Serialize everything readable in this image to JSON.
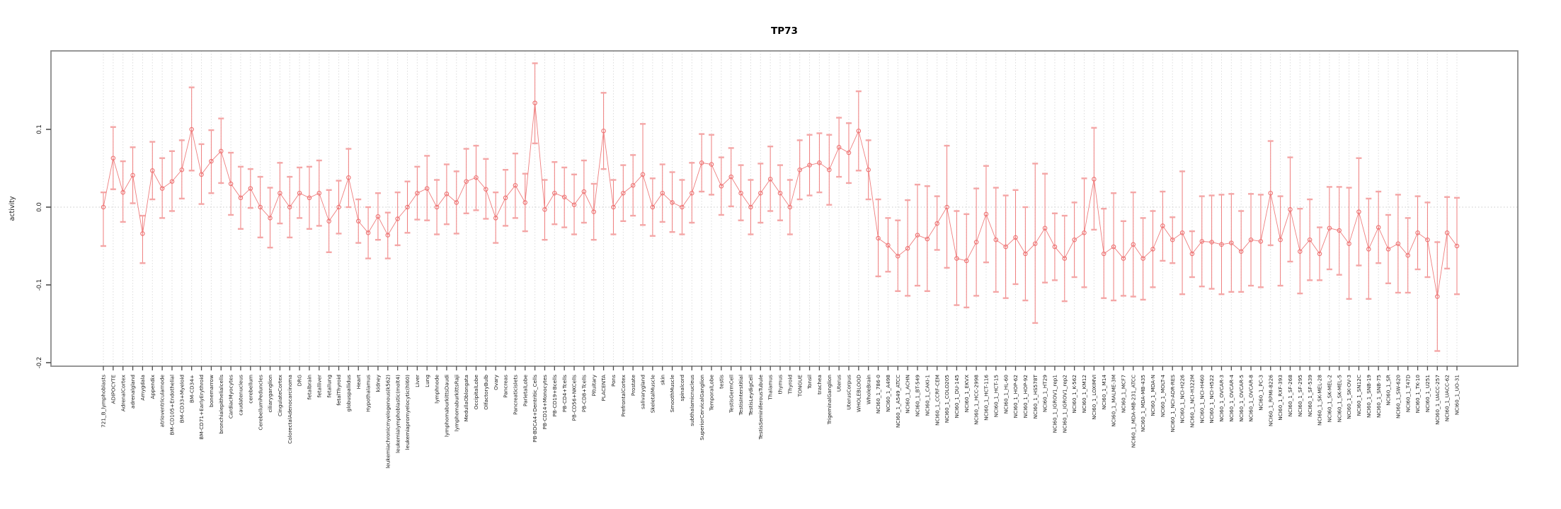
{
  "chart_data": {
    "type": "line",
    "title": "TP73",
    "xlabel": "",
    "ylabel": "activity",
    "ylim": [
      -0.205,
      0.201
    ],
    "yticks": [
      0.1,
      0.0,
      -0.1,
      -0.2
    ],
    "ytick_labels": [
      "0.1",
      "0.0",
      "-0.1",
      "-0.2"
    ],
    "legend": "none",
    "grid": "vertical dotted gridline per category; dotted horizontal line at 0",
    "marker": "open-circle with asymmetric error bars and flat caps, points connected by thin line",
    "categories": [
      "721_B_lymphoblasts",
      "ADIPOCYTE",
      "AdrenalCortex",
      "adrenalgland",
      "Amygdala",
      "Appendix",
      "atrioventricularnode",
      "BM-CD105+Endothelial",
      "BM-CD33+Myeloid",
      "BM-CD34+",
      "BM-CD71+EarlyErythroid",
      "bonemarrow",
      "bronchialepithelialcells",
      "CardiacMyocytes",
      "caudatenucleus",
      "cerebellum",
      "CerebellumPeduncles",
      "ciliaryganglion",
      "CingulateCortex",
      "ColorectalAdenocarcinoma",
      "DRG",
      "fetalbrain",
      "fetalliver",
      "fetallung",
      "fetalThyroid",
      "globuspallidus",
      "Heart",
      "Hypothalamus",
      "kidney",
      "leukemiachronicmyelogenous(k562)",
      "leukemialymphoblastic(molt4)",
      "leukemiapromyelocytic(hl60)",
      "Liver",
      "Lung",
      "lymphnode",
      "lymphomaburkittsDaudi",
      "lymphomaburkittsRaji",
      "MedullaOblongata",
      "OccipitalLobe",
      "OlfactoryBulb",
      "Ovary",
      "Pancreas",
      "Pancreaticislets",
      "ParietalLobe",
      "PB-BDCA4+Dentritic_Cells",
      "PB-CD14+Monocytes",
      "PB-CD19+Bcells",
      "PB-CD4+Tcells",
      "PB-CD56+NKCells",
      "PB-CD8+Tcells",
      "Pituitary",
      "PLACENTA",
      "Pons",
      "PrefrontalCortex",
      "Prostate",
      "salivarygland",
      "SkeletalMuscle",
      "skin",
      "SmoothMuscle",
      "spinalcord",
      "subthalamicnucleus",
      "SuperiorCervicalGanglion",
      "TemporalLobe",
      "testis",
      "TestisGermCell",
      "TestisInterstitial",
      "TestisLeydigCell",
      "TestisSeminiferousTubule",
      "Thalamus",
      "thymus",
      "Thyroid",
      "TONGUE",
      "Tonsil",
      "trachea",
      "TrigeminalGanglion",
      "Uterus",
      "UterusCorpus",
      "WHOLEBLOOD",
      "WholeBrain",
      "NCI60_1_786-0",
      "NCI60_1_A498",
      "NCI60_1_A549_ATCC",
      "NCI60_1_ACHN",
      "NCI60_1_BT-549",
      "NCI60_1_CAKI-1",
      "NCI60_1_CCRF-CEM",
      "NCI60_1_COLO205",
      "NCI60_1_DU-145",
      "NCI60_1_EKVX",
      "NCI60_1_HCC-2998",
      "NCI60_1_HCT-116",
      "NCI60_1_HCT-15",
      "NCI60_1_HL-60",
      "NCI60_1_HOP-62",
      "NCI60_1_HOP-92",
      "NCI60_1_HS578T",
      "NCI60_1_HT29",
      "NCI60_1_IGROV1_rep1",
      "NCI60_1_IGROV1_rep2",
      "NCI60_1_K-562",
      "NCI60_1_KM12",
      "NCI60_1_LOXIMVI",
      "NCI60_1_M14",
      "NCI60_1_MALME-3M",
      "NCI60_1_MCF7",
      "NCI60_1_MDA-MB-231_ATCC",
      "NCI60_1_MDA-MB-435",
      "NCI60_1_MDA-N",
      "NCI60_1_MOLT-4",
      "NCI60_1_NCI-ADR-RES",
      "NCI60_1_NCI-H226",
      "NCI60_1_NCI-H322M",
      "NCI60_1_NCI-H460",
      "NCI60_1_NCI-H522",
      "NCI60_1_OVCAR-3",
      "NCI60_1_OVCAR-4",
      "NCI60_1_OVCAR-5",
      "NCI60_1_OVCAR-8",
      "NCI60_1_PC-3",
      "NCI60_1_RPMI-8226",
      "NCI60_1_RXF-393",
      "NCI60_1_SF-268",
      "NCI60_1_SF-295",
      "NCI60_1_SF-539",
      "NCI60_1_SK-MEL-28",
      "NCI60_1_SK-MEL-2",
      "NCI60_1_SK-MEL-5",
      "NCI60_1_SK-OV-3",
      "NCI60_1_SN12C",
      "NCI60_1_SNB-19",
      "NCI60_1_SNB-75",
      "NCI60_1_SR",
      "NCI60_1_SW-620",
      "NCI60_1_T47D",
      "NCI60_1_TK-10",
      "NCI60_1_U251",
      "NCI60_1_UACC-257",
      "NCI60_1_UACC-62",
      "NCI60_1_UO-31"
    ],
    "values": [
      0.0,
      0.063,
      0.019,
      0.041,
      -0.034,
      0.047,
      0.024,
      0.033,
      0.048,
      0.1,
      0.042,
      0.059,
      0.072,
      0.03,
      0.012,
      0.024,
      0.0,
      -0.014,
      0.018,
      0.0,
      0.018,
      0.012,
      0.018,
      -0.018,
      0.0,
      0.038,
      -0.018,
      -0.033,
      -0.012,
      -0.036,
      -0.015,
      0.0,
      0.018,
      0.024,
      0.0,
      0.017,
      0.006,
      0.033,
      0.038,
      0.023,
      -0.014,
      0.012,
      0.028,
      0.006,
      0.134,
      -0.003,
      0.018,
      0.013,
      0.003,
      0.02,
      -0.006,
      0.098,
      0.0,
      0.018,
      0.028,
      0.042,
      0.0,
      0.018,
      0.006,
      0.0,
      0.018,
      0.057,
      0.055,
      0.027,
      0.039,
      0.018,
      0.0,
      0.018,
      0.036,
      0.018,
      0.0,
      0.048,
      0.054,
      0.057,
      0.048,
      0.077,
      0.07,
      0.098,
      0.048,
      -0.04,
      -0.049,
      -0.063,
      -0.053,
      -0.036,
      -0.041,
      -0.021,
      0.0,
      -0.066,
      -0.069,
      -0.045,
      -0.009,
      -0.042,
      -0.051,
      -0.039,
      -0.06,
      -0.047,
      -0.027,
      -0.051,
      -0.066,
      -0.042,
      -0.033,
      0.036,
      -0.06,
      -0.051,
      -0.066,
      -0.048,
      -0.066,
      -0.054,
      -0.024,
      -0.042,
      -0.033,
      -0.06,
      -0.044,
      -0.045,
      -0.048,
      -0.046,
      -0.057,
      -0.042,
      -0.044,
      0.018,
      -0.042,
      -0.003,
      -0.057,
      -0.042,
      -0.06,
      -0.027,
      -0.03,
      -0.047,
      -0.006,
      -0.054,
      -0.026,
      -0.054,
      -0.047,
      -0.062,
      -0.033,
      -0.042,
      -0.115,
      -0.033,
      -0.05
    ],
    "err_lo": [
      -0.05,
      0.023,
      -0.019,
      0.005,
      -0.072,
      0.01,
      -0.014,
      -0.005,
      0.011,
      0.047,
      0.004,
      0.018,
      0.031,
      -0.01,
      -0.028,
      -0.001,
      -0.039,
      -0.052,
      -0.021,
      -0.039,
      -0.014,
      -0.028,
      -0.024,
      -0.058,
      -0.034,
      0.0,
      -0.046,
      -0.066,
      -0.042,
      -0.066,
      -0.049,
      -0.033,
      -0.016,
      -0.017,
      -0.035,
      -0.022,
      -0.034,
      -0.008,
      -0.004,
      -0.015,
      -0.046,
      -0.024,
      -0.014,
      -0.031,
      0.082,
      -0.042,
      -0.022,
      -0.026,
      -0.035,
      -0.02,
      -0.042,
      0.049,
      -0.035,
      -0.018,
      -0.011,
      -0.023,
      -0.037,
      -0.019,
      -0.032,
      -0.035,
      -0.02,
      0.02,
      0.016,
      -0.01,
      0.001,
      -0.017,
      -0.035,
      -0.02,
      -0.005,
      -0.017,
      -0.035,
      0.01,
      0.015,
      0.019,
      0.003,
      0.039,
      0.031,
      0.047,
      0.01,
      -0.089,
      -0.083,
      -0.108,
      -0.114,
      -0.101,
      -0.108,
      -0.055,
      -0.078,
      -0.126,
      -0.129,
      -0.114,
      -0.071,
      -0.109,
      -0.117,
      -0.099,
      -0.12,
      -0.149,
      -0.097,
      -0.094,
      -0.121,
      -0.09,
      -0.103,
      -0.029,
      -0.117,
      -0.12,
      -0.114,
      -0.115,
      -0.119,
      -0.103,
      -0.069,
      -0.072,
      -0.112,
      -0.09,
      -0.102,
      -0.105,
      -0.112,
      -0.109,
      -0.109,
      -0.101,
      -0.103,
      -0.049,
      -0.101,
      -0.07,
      -0.111,
      -0.094,
      -0.094,
      -0.08,
      -0.087,
      -0.118,
      -0.075,
      -0.118,
      -0.072,
      -0.098,
      -0.11,
      -0.11,
      -0.08,
      -0.09,
      -0.185,
      -0.079,
      -0.112
    ],
    "err_hi": [
      0.019,
      0.103,
      0.059,
      0.077,
      -0.011,
      0.084,
      0.063,
      0.072,
      0.086,
      0.154,
      0.081,
      0.099,
      0.114,
      0.07,
      0.052,
      0.049,
      0.039,
      0.025,
      0.057,
      0.039,
      0.051,
      0.052,
      0.06,
      0.022,
      0.034,
      0.075,
      0.01,
      0.0,
      0.018,
      -0.007,
      0.019,
      0.033,
      0.052,
      0.066,
      0.035,
      0.055,
      0.046,
      0.075,
      0.079,
      0.062,
      0.019,
      0.048,
      0.069,
      0.043,
      0.185,
      0.035,
      0.058,
      0.051,
      0.042,
      0.06,
      0.03,
      0.147,
      0.035,
      0.054,
      0.067,
      0.107,
      0.037,
      0.055,
      0.045,
      0.035,
      0.057,
      0.094,
      0.093,
      0.064,
      0.076,
      0.054,
      0.035,
      0.056,
      0.078,
      0.054,
      0.035,
      0.086,
      0.093,
      0.095,
      0.093,
      0.115,
      0.108,
      0.149,
      0.086,
      0.01,
      -0.014,
      -0.017,
      0.009,
      0.029,
      0.027,
      0.014,
      0.079,
      -0.005,
      -0.009,
      0.024,
      0.053,
      0.025,
      0.015,
      0.022,
      0.0,
      0.056,
      0.043,
      -0.008,
      -0.011,
      0.006,
      0.037,
      0.102,
      -0.002,
      0.018,
      -0.018,
      0.019,
      -0.014,
      -0.005,
      0.02,
      -0.013,
      0.046,
      -0.031,
      0.014,
      0.015,
      0.016,
      0.017,
      -0.005,
      0.017,
      0.016,
      0.085,
      0.014,
      0.064,
      -0.002,
      0.01,
      -0.026,
      0.026,
      0.026,
      0.025,
      0.063,
      0.011,
      0.02,
      -0.01,
      0.016,
      -0.014,
      0.014,
      0.006,
      -0.045,
      0.013,
      0.012
    ]
  },
  "style": {
    "point_color": "#ee7272",
    "line_color": "#ef7e7e",
    "cap_color": "#f4a6a6",
    "grid_color": "#dcdcdc",
    "zero_line_color": "#c9c9c9",
    "box_color": "#8a8a8a",
    "tick_color": "#4d4d4d",
    "label_color": "#1a1a1a",
    "background": "#ffffff"
  }
}
